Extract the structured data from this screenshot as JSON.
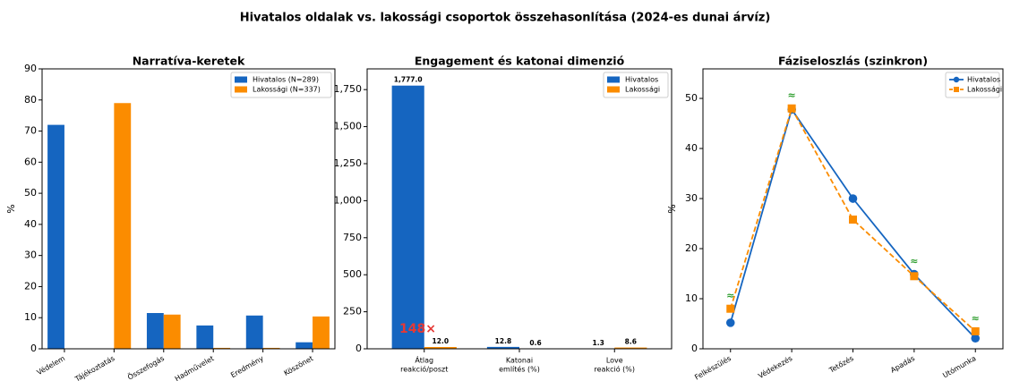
{
  "title": "Hivatalos oldalak vs. lakossági csoportok összehasonlítása (2024-es dunai árvíz)",
  "chart_data": [
    {
      "type": "bar",
      "title": "Narratíva-keretek",
      "ylabel": "%",
      "categories": [
        "Védelem",
        "Tájékoztatás",
        "Összefogás",
        "Hadművelet",
        "Eredmény",
        "Köszönet"
      ],
      "series": [
        {
          "name": "Hivatalos (N=289)",
          "color": "#1565c0",
          "values": [
            72,
            0,
            11.5,
            7.5,
            10.7,
            2.1
          ]
        },
        {
          "name": "Lakossági (N=337)",
          "color": "#fb8c00",
          "values": [
            0,
            79,
            11,
            0.3,
            0.3,
            10.4
          ]
        }
      ],
      "ylim": [
        0,
        90
      ],
      "yticks": [
        0,
        10,
        20,
        30,
        40,
        50,
        60,
        70,
        80,
        90
      ],
      "legend": "upper right",
      "rotate_labels": true
    },
    {
      "type": "bar",
      "title": "Engagement és katonai dimenzió",
      "categories": [
        [
          "Átlag",
          "reakció/poszt"
        ],
        [
          "Katonai",
          "említés (%)"
        ],
        [
          "Love",
          "reakció (%)"
        ]
      ],
      "series": [
        {
          "name": "Hivatalos",
          "color": "#1565c0",
          "values": [
            1777,
            12.8,
            1.3
          ],
          "value_labels": [
            "1,777.0",
            "12.8",
            "1.3"
          ]
        },
        {
          "name": "Lakossági",
          "color": "#fb8c00",
          "values": [
            12.0,
            0.6,
            8.6
          ],
          "value_labels": [
            "12.0",
            "0.6",
            "8.6"
          ]
        }
      ],
      "ylim": [
        0,
        1890
      ],
      "yticks": [
        0,
        250,
        500,
        750,
        {
          "value": 1000,
          "label": "1,000"
        },
        {
          "value": 1250,
          "label": "1,250"
        },
        {
          "value": 1500,
          "label": "1,500"
        },
        {
          "value": 1750,
          "label": "1,750"
        }
      ],
      "legend": "upper right",
      "annotation": "148×"
    },
    {
      "type": "line",
      "title": "Fáziseloszlás (szinkron)",
      "ylabel": "%",
      "categories": [
        "Felkészülés",
        "Védekezés",
        "Tetőzés",
        "Apadás",
        "Utómunka"
      ],
      "series": [
        {
          "name": "Hivatalos",
          "color": "#1565c0",
          "values": [
            5.2,
            47.8,
            30,
            14.9,
            2.1
          ],
          "marker": "circle",
          "dashed": false
        },
        {
          "name": "Lakossági",
          "color": "#fb8c00",
          "values": [
            8,
            48,
            25.8,
            14.5,
            3.5
          ],
          "marker": "square",
          "dashed": true
        }
      ],
      "markers": [
        "≈",
        "≈",
        null,
        "≈",
        "≈"
      ],
      "ylim": [
        0,
        55.9
      ],
      "yticks": [
        0,
        10,
        20,
        30,
        40,
        50
      ],
      "legend": "upper right",
      "rotate_labels": true
    }
  ]
}
